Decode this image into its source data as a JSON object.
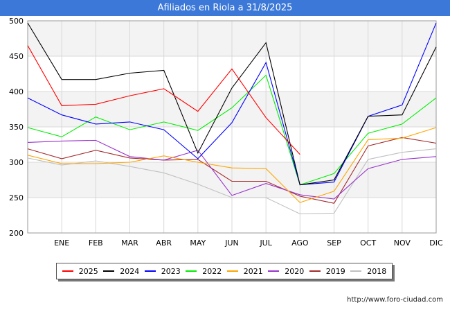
{
  "title": "Afiliados en Riola a 31/8/2025",
  "footer": "http://www.foro-ciudad.com",
  "chart_data": {
    "type": "line",
    "categories": [
      "",
      "ENE",
      "FEB",
      "MAR",
      "ABR",
      "MAY",
      "JUN",
      "JUL",
      "AGO",
      "SEP",
      "OCT",
      "NOV",
      "DIC"
    ],
    "ylim": [
      200,
      500
    ],
    "yticks": [
      200,
      250,
      300,
      350,
      400,
      450,
      500
    ],
    "grid": true,
    "legend_position": "bottom",
    "series": [
      {
        "name": "2025",
        "color": "#ff0000",
        "values": [
          465,
          380,
          382,
          394,
          404,
          372,
          432,
          363,
          311,
          null,
          null,
          null,
          null
        ]
      },
      {
        "name": "2024",
        "color": "#000000",
        "values": [
          497,
          417,
          417,
          426,
          430,
          313,
          405,
          469,
          268,
          275,
          365,
          367,
          463
        ]
      },
      {
        "name": "2023",
        "color": "#0000ff",
        "values": [
          391,
          367,
          354,
          357,
          346,
          305,
          356,
          441,
          268,
          272,
          365,
          381,
          497
        ]
      },
      {
        "name": "2022",
        "color": "#00ee00",
        "values": [
          349,
          336,
          364,
          346,
          357,
          345,
          377,
          423,
          268,
          284,
          341,
          354,
          391
        ]
      },
      {
        "name": "2021",
        "color": "#ffa500",
        "values": [
          310,
          298,
          298,
          300,
          309,
          300,
          292,
          291,
          243,
          259,
          332,
          334,
          349
        ]
      },
      {
        "name": "2020",
        "color": "#9932cc",
        "values": [
          328,
          330,
          331,
          308,
          303,
          317,
          253,
          270,
          254,
          248,
          291,
          304,
          308
        ]
      },
      {
        "name": "2019",
        "color": "#a52a2a",
        "values": [
          319,
          305,
          317,
          306,
          303,
          304,
          273,
          273,
          252,
          242,
          323,
          335,
          327
        ]
      },
      {
        "name": "2018",
        "color": "#c0c0c0",
        "values": [
          306,
          296,
          302,
          294,
          285,
          269,
          250,
          250,
          227,
          228,
          304,
          314,
          319
        ]
      }
    ]
  }
}
